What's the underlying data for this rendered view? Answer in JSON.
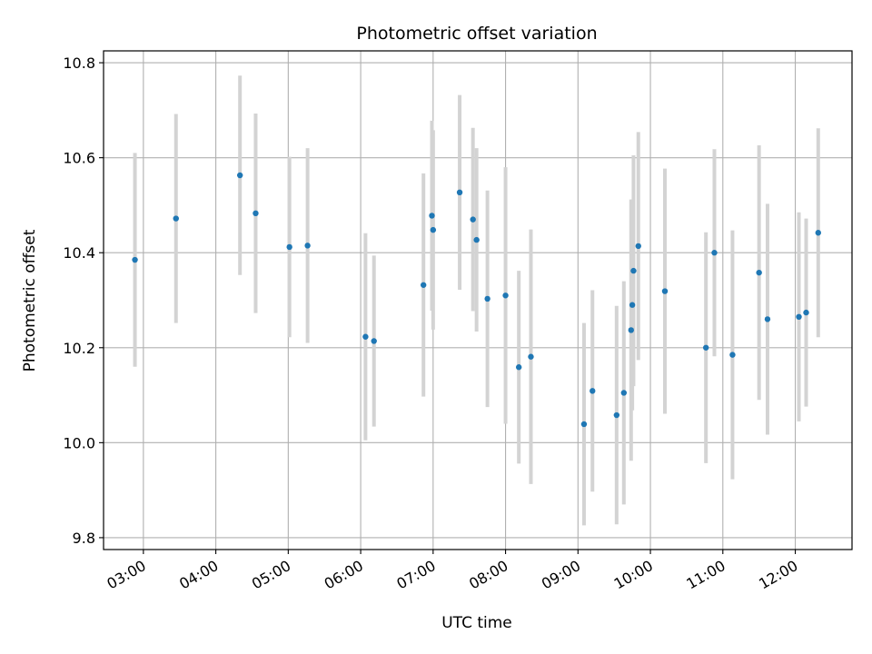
{
  "chart_data": {
    "type": "scatter",
    "title": "Photometric offset variation",
    "xlabel": "UTC time",
    "ylabel": "Photometric offset",
    "xlim": [
      "02:27",
      "12:47"
    ],
    "ylim": [
      9.775,
      10.825
    ],
    "x_ticks": [
      "03:00",
      "04:00",
      "05:00",
      "06:00",
      "07:00",
      "08:00",
      "09:00",
      "10:00",
      "11:00",
      "12:00"
    ],
    "y_ticks": [
      9.8,
      10.0,
      10.2,
      10.4,
      10.6,
      10.8
    ],
    "grid": true,
    "marker_color": "#1f77b4",
    "errorbar_color": "#d3d3d3",
    "series": [
      {
        "x": [
          "02:53",
          "03:27",
          "04:20",
          "04:33",
          "05:01",
          "05:16",
          "06:04",
          "06:11",
          "06:52",
          "06:59",
          "07:00",
          "07:22",
          "07:33",
          "07:36",
          "07:45",
          "08:00",
          "08:11",
          "08:21",
          "09:05",
          "09:12",
          "09:32",
          "09:38",
          "09:44",
          "09:45",
          "09:46",
          "09:50",
          "10:12",
          "10:46",
          "10:53",
          "11:08",
          "11:30",
          "11:37",
          "12:03",
          "12:09",
          "12:19"
        ],
        "y": [
          10.385,
          10.472,
          10.563,
          10.483,
          10.412,
          10.415,
          10.223,
          10.214,
          10.332,
          10.478,
          10.448,
          10.527,
          10.47,
          10.427,
          10.303,
          10.31,
          10.159,
          10.181,
          10.039,
          10.109,
          10.058,
          10.105,
          10.237,
          10.29,
          10.362,
          10.414,
          10.319,
          10.2,
          10.4,
          10.185,
          10.358,
          10.26,
          10.265,
          10.274,
          10.442
        ],
        "yerr": [
          0.225,
          0.22,
          0.21,
          0.21,
          0.19,
          0.205,
          0.218,
          0.18,
          0.235,
          0.2,
          0.21,
          0.205,
          0.193,
          0.193,
          0.228,
          0.27,
          0.203,
          0.268,
          0.213,
          0.212,
          0.23,
          0.235,
          0.275,
          0.222,
          0.243,
          0.24,
          0.258,
          0.243,
          0.218,
          0.262,
          0.268,
          0.243,
          0.22,
          0.198,
          0.22
        ]
      }
    ]
  }
}
